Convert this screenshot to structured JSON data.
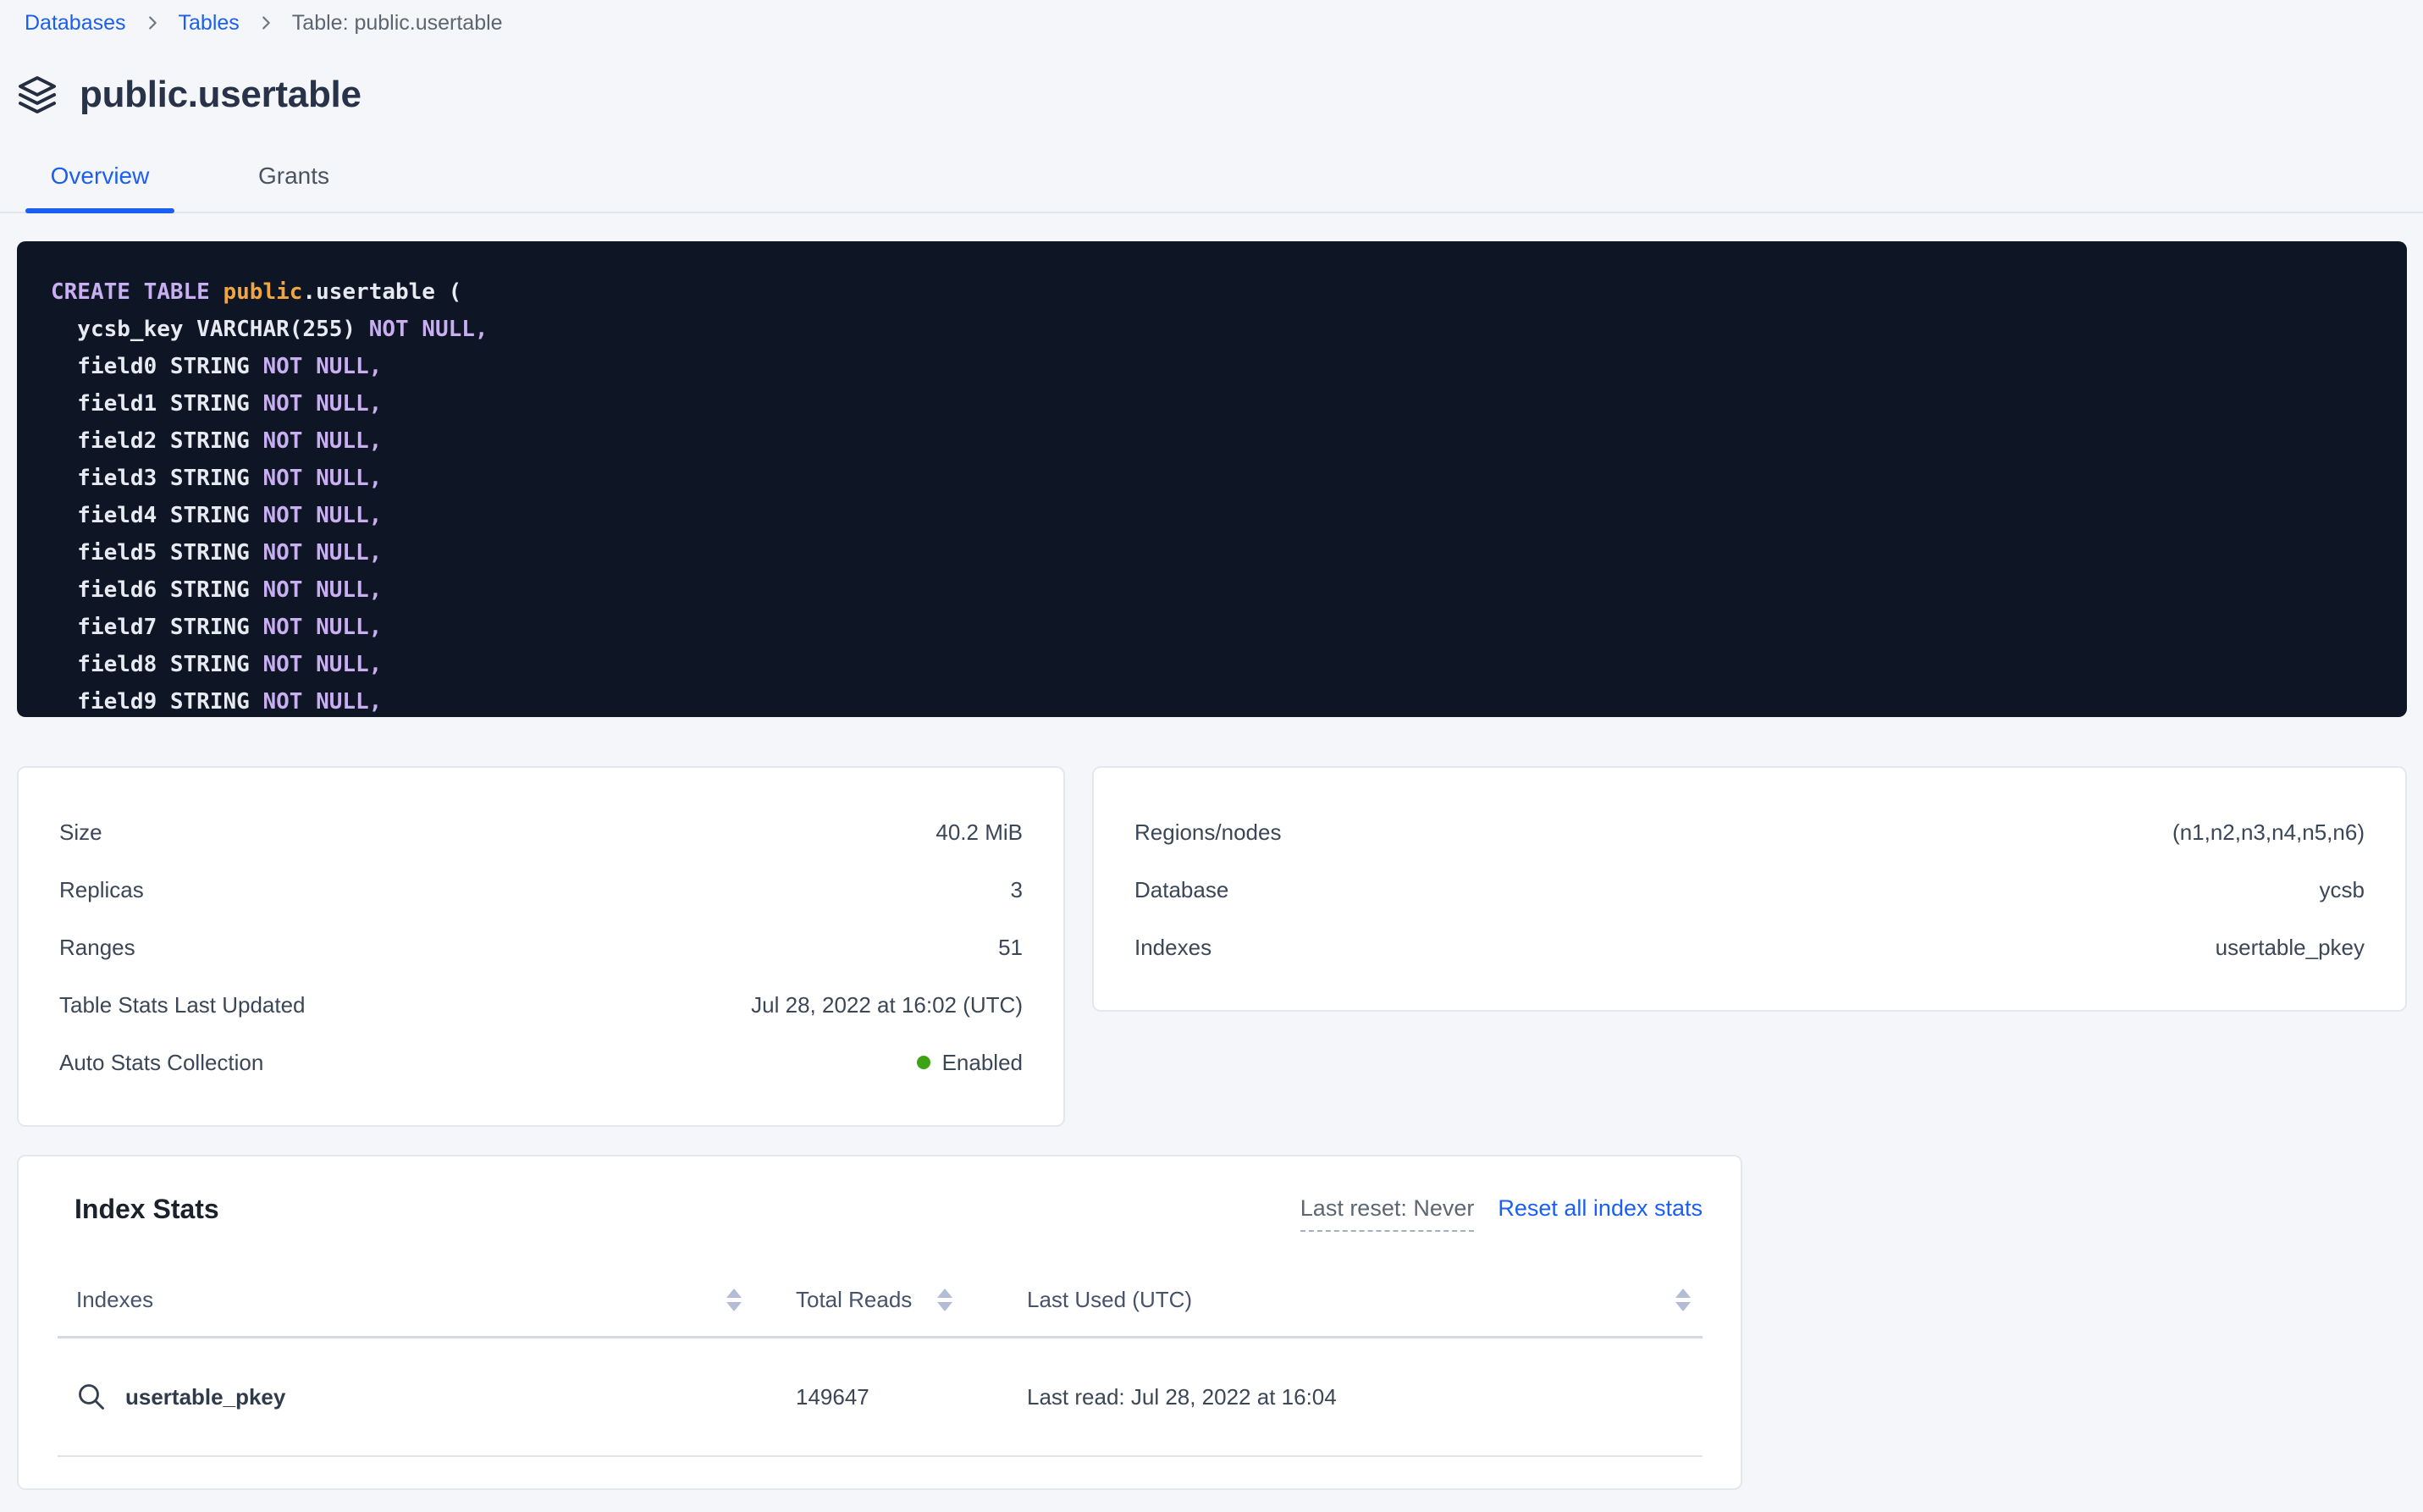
{
  "colors": {
    "accent": "#1b5ff2",
    "page_bg": "#f4f6fa",
    "code_bg": "#0e1626",
    "code_plain": "#e7eaf1",
    "code_keyword": "#c9aef2",
    "code_accent_orange": "#f0a53f",
    "status_green": "#3ca312",
    "text_dark": "#3b4657"
  },
  "breadcrumb": {
    "items": [
      {
        "label": "Databases"
      },
      {
        "label": "Tables"
      }
    ],
    "current": "Table: public.usertable"
  },
  "header": {
    "title": "public.usertable"
  },
  "tabs": [
    {
      "label": "Overview",
      "active": true
    },
    {
      "label": "Grants",
      "active": false
    }
  ],
  "sql": {
    "lines": [
      [
        {
          "t": "CREATE TABLE ",
          "c": "kw"
        },
        {
          "t": "public",
          "c": "accent"
        },
        {
          "t": ".usertable (",
          "c": "plain"
        }
      ],
      [
        {
          "t": "  ycsb_key VARCHAR(255) ",
          "c": "plain"
        },
        {
          "t": "NOT NULL,",
          "c": "kw"
        }
      ],
      [
        {
          "t": "  field0 STRING ",
          "c": "plain"
        },
        {
          "t": "NOT NULL,",
          "c": "kw"
        }
      ],
      [
        {
          "t": "  field1 STRING ",
          "c": "plain"
        },
        {
          "t": "NOT NULL,",
          "c": "kw"
        }
      ],
      [
        {
          "t": "  field2 STRING ",
          "c": "plain"
        },
        {
          "t": "NOT NULL,",
          "c": "kw"
        }
      ],
      [
        {
          "t": "  field3 STRING ",
          "c": "plain"
        },
        {
          "t": "NOT NULL,",
          "c": "kw"
        }
      ],
      [
        {
          "t": "  field4 STRING ",
          "c": "plain"
        },
        {
          "t": "NOT NULL,",
          "c": "kw"
        }
      ],
      [
        {
          "t": "  field5 STRING ",
          "c": "plain"
        },
        {
          "t": "NOT NULL,",
          "c": "kw"
        }
      ],
      [
        {
          "t": "  field6 STRING ",
          "c": "plain"
        },
        {
          "t": "NOT NULL,",
          "c": "kw"
        }
      ],
      [
        {
          "t": "  field7 STRING ",
          "c": "plain"
        },
        {
          "t": "NOT NULL,",
          "c": "kw"
        }
      ],
      [
        {
          "t": "  field8 STRING ",
          "c": "plain"
        },
        {
          "t": "NOT NULL,",
          "c": "kw"
        }
      ],
      [
        {
          "t": "  field9 STRING ",
          "c": "plain"
        },
        {
          "t": "NOT NULL,",
          "c": "kw"
        }
      ]
    ]
  },
  "summary_card": {
    "rows": [
      {
        "label": "Size",
        "value": "40.2 MiB"
      },
      {
        "label": "Replicas",
        "value": "3"
      },
      {
        "label": "Ranges",
        "value": "51"
      },
      {
        "label": "Table Stats Last Updated",
        "value": "Jul 28, 2022 at 16:02 (UTC)"
      },
      {
        "label": "Auto Stats Collection",
        "value": "Enabled",
        "status": "green"
      }
    ]
  },
  "meta_card": {
    "rows": [
      {
        "label": "Regions/nodes",
        "value": "(n1,n2,n3,n4,n5,n6)"
      },
      {
        "label": "Database",
        "value": "ycsb"
      },
      {
        "label": "Indexes",
        "value": "usertable_pkey"
      }
    ]
  },
  "index_stats": {
    "title": "Index Stats",
    "last_reset": "Last reset: Never",
    "reset_link": "Reset all index stats",
    "columns": [
      "Indexes",
      "Total Reads",
      "Last Used (UTC)"
    ],
    "rows": [
      {
        "name": "usertable_pkey",
        "total_reads": "149647",
        "last_used": "Last read: Jul 28, 2022 at 16:04"
      }
    ]
  }
}
